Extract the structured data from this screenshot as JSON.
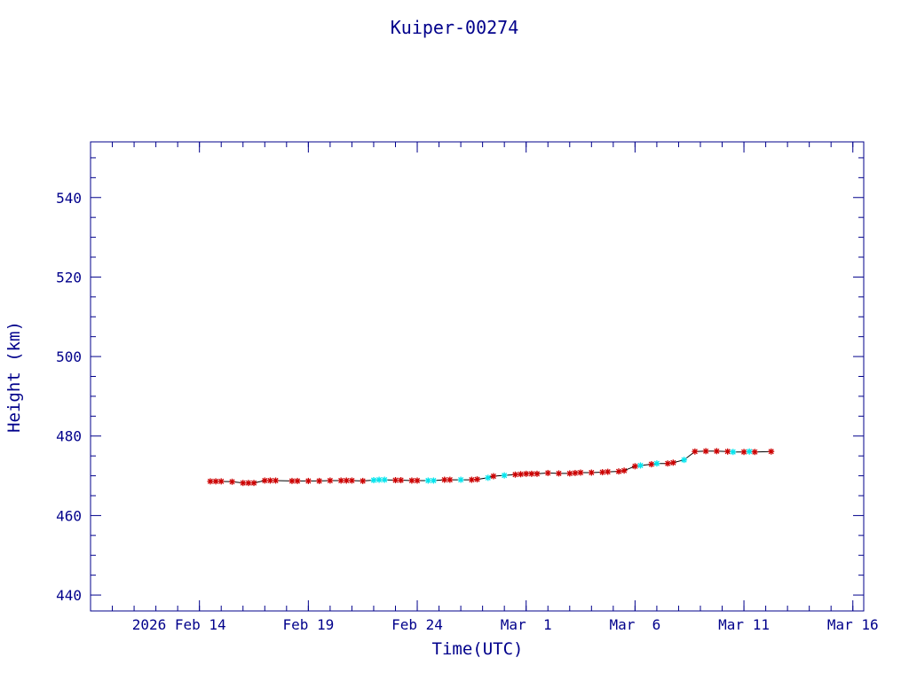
{
  "colors": {
    "text": "#00008b",
    "axis": "#00008b",
    "line": "#000000",
    "marker_primary": "#cc0000",
    "marker_secondary": "#00e5ee"
  },
  "chart_data": {
    "type": "line",
    "title": "Kuiper-00274",
    "xlabel": "Time(UTC)",
    "ylabel": "Height (km)",
    "xlim": [
      "2026-02-09",
      "2026-03-16T12:00"
    ],
    "ylim": [
      436,
      554
    ],
    "x_ticks": [
      {
        "date": "2026-02-14",
        "label": "2026 Feb 14"
      },
      {
        "date": "2026-02-19",
        "label": "Feb 19"
      },
      {
        "date": "2026-02-24",
        "label": "Feb 24"
      },
      {
        "date": "2026-03-01",
        "label": "Mar  1"
      },
      {
        "date": "2026-03-06",
        "label": "Mar  6"
      },
      {
        "date": "2026-03-11",
        "label": "Mar 11"
      },
      {
        "date": "2026-03-16",
        "label": "Mar 16"
      }
    ],
    "y_ticks": [
      440,
      460,
      480,
      500,
      520,
      540
    ],
    "grid": false,
    "series": [
      {
        "marker": "asterisk",
        "points": [
          [
            "2026-02-14T12:00",
            468.6,
            "red"
          ],
          [
            "2026-02-14T18:00",
            468.6,
            "red"
          ],
          [
            "2026-02-15T00:00",
            468.6,
            "red"
          ],
          [
            "2026-02-15T12:00",
            468.5,
            "red"
          ],
          [
            "2026-02-16T00:00",
            468.2,
            "red"
          ],
          [
            "2026-02-16T06:00",
            468.2,
            "red"
          ],
          [
            "2026-02-16T12:00",
            468.2,
            "red"
          ],
          [
            "2026-02-17T00:00",
            468.8,
            "red"
          ],
          [
            "2026-02-17T06:00",
            468.8,
            "red"
          ],
          [
            "2026-02-17T12:00",
            468.8,
            "red"
          ],
          [
            "2026-02-18T06:00",
            468.7,
            "red"
          ],
          [
            "2026-02-18T12:00",
            468.7,
            "red"
          ],
          [
            "2026-02-19T00:00",
            468.7,
            "red"
          ],
          [
            "2026-02-19T12:00",
            468.7,
            "red"
          ],
          [
            "2026-02-20T00:00",
            468.8,
            "red"
          ],
          [
            "2026-02-20T12:00",
            468.8,
            "red"
          ],
          [
            "2026-02-20T18:00",
            468.8,
            "red"
          ],
          [
            "2026-02-21T00:00",
            468.8,
            "red"
          ],
          [
            "2026-02-21T12:00",
            468.7,
            "red"
          ],
          [
            "2026-02-22T00:00",
            468.9,
            "cyan"
          ],
          [
            "2026-02-22T06:00",
            469.0,
            "cyan"
          ],
          [
            "2026-02-22T12:00",
            469.0,
            "cyan"
          ],
          [
            "2026-02-23T00:00",
            468.9,
            "red"
          ],
          [
            "2026-02-23T06:00",
            468.9,
            "red"
          ],
          [
            "2026-02-23T18:00",
            468.8,
            "red"
          ],
          [
            "2026-02-24T00:00",
            468.8,
            "red"
          ],
          [
            "2026-02-24T12:00",
            468.8,
            "cyan"
          ],
          [
            "2026-02-24T18:00",
            468.8,
            "cyan"
          ],
          [
            "2026-02-25T06:00",
            469.0,
            "red"
          ],
          [
            "2026-02-25T12:00",
            469.0,
            "red"
          ],
          [
            "2026-02-26T00:00",
            469.0,
            "cyan"
          ],
          [
            "2026-02-26T12:00",
            469.0,
            "red"
          ],
          [
            "2026-02-26T18:00",
            469.1,
            "red"
          ],
          [
            "2026-02-27T06:00",
            469.5,
            "cyan"
          ],
          [
            "2026-02-27T12:00",
            469.9,
            "red"
          ],
          [
            "2026-02-28T00:00",
            470.1,
            "cyan"
          ],
          [
            "2026-02-28T12:00",
            470.3,
            "red"
          ],
          [
            "2026-02-28T18:00",
            470.4,
            "red"
          ],
          [
            "2026-03-01T00:00",
            470.5,
            "red"
          ],
          [
            "2026-03-01T06:00",
            470.5,
            "red"
          ],
          [
            "2026-03-01T12:00",
            470.5,
            "red"
          ],
          [
            "2026-03-02T00:00",
            470.7,
            "red"
          ],
          [
            "2026-03-02T12:00",
            470.6,
            "red"
          ],
          [
            "2026-03-03T00:00",
            470.6,
            "red"
          ],
          [
            "2026-03-03T06:00",
            470.7,
            "red"
          ],
          [
            "2026-03-03T12:00",
            470.8,
            "red"
          ],
          [
            "2026-03-04T00:00",
            470.8,
            "red"
          ],
          [
            "2026-03-04T12:00",
            470.9,
            "red"
          ],
          [
            "2026-03-04T18:00",
            471.0,
            "red"
          ],
          [
            "2026-03-05T06:00",
            471.1,
            "red"
          ],
          [
            "2026-03-05T12:00",
            471.3,
            "red"
          ],
          [
            "2026-03-06T00:00",
            472.4,
            "red"
          ],
          [
            "2026-03-06T06:00",
            472.6,
            "cyan"
          ],
          [
            "2026-03-06T18:00",
            472.9,
            "red"
          ],
          [
            "2026-03-07T00:00",
            473.1,
            "cyan"
          ],
          [
            "2026-03-07T12:00",
            473.1,
            "red"
          ],
          [
            "2026-03-07T18:00",
            473.3,
            "red"
          ],
          [
            "2026-03-08T06:00",
            474.0,
            "cyan"
          ],
          [
            "2026-03-08T18:00",
            476.1,
            "red"
          ],
          [
            "2026-03-09T06:00",
            476.2,
            "red"
          ],
          [
            "2026-03-09T18:00",
            476.2,
            "red"
          ],
          [
            "2026-03-10T06:00",
            476.1,
            "red"
          ],
          [
            "2026-03-10T12:00",
            476.0,
            "cyan"
          ],
          [
            "2026-03-11T00:00",
            476.0,
            "red"
          ],
          [
            "2026-03-11T06:00",
            476.1,
            "cyan"
          ],
          [
            "2026-03-11T12:00",
            476.0,
            "red"
          ],
          [
            "2026-03-12T06:00",
            476.1,
            "red"
          ]
        ]
      }
    ]
  }
}
